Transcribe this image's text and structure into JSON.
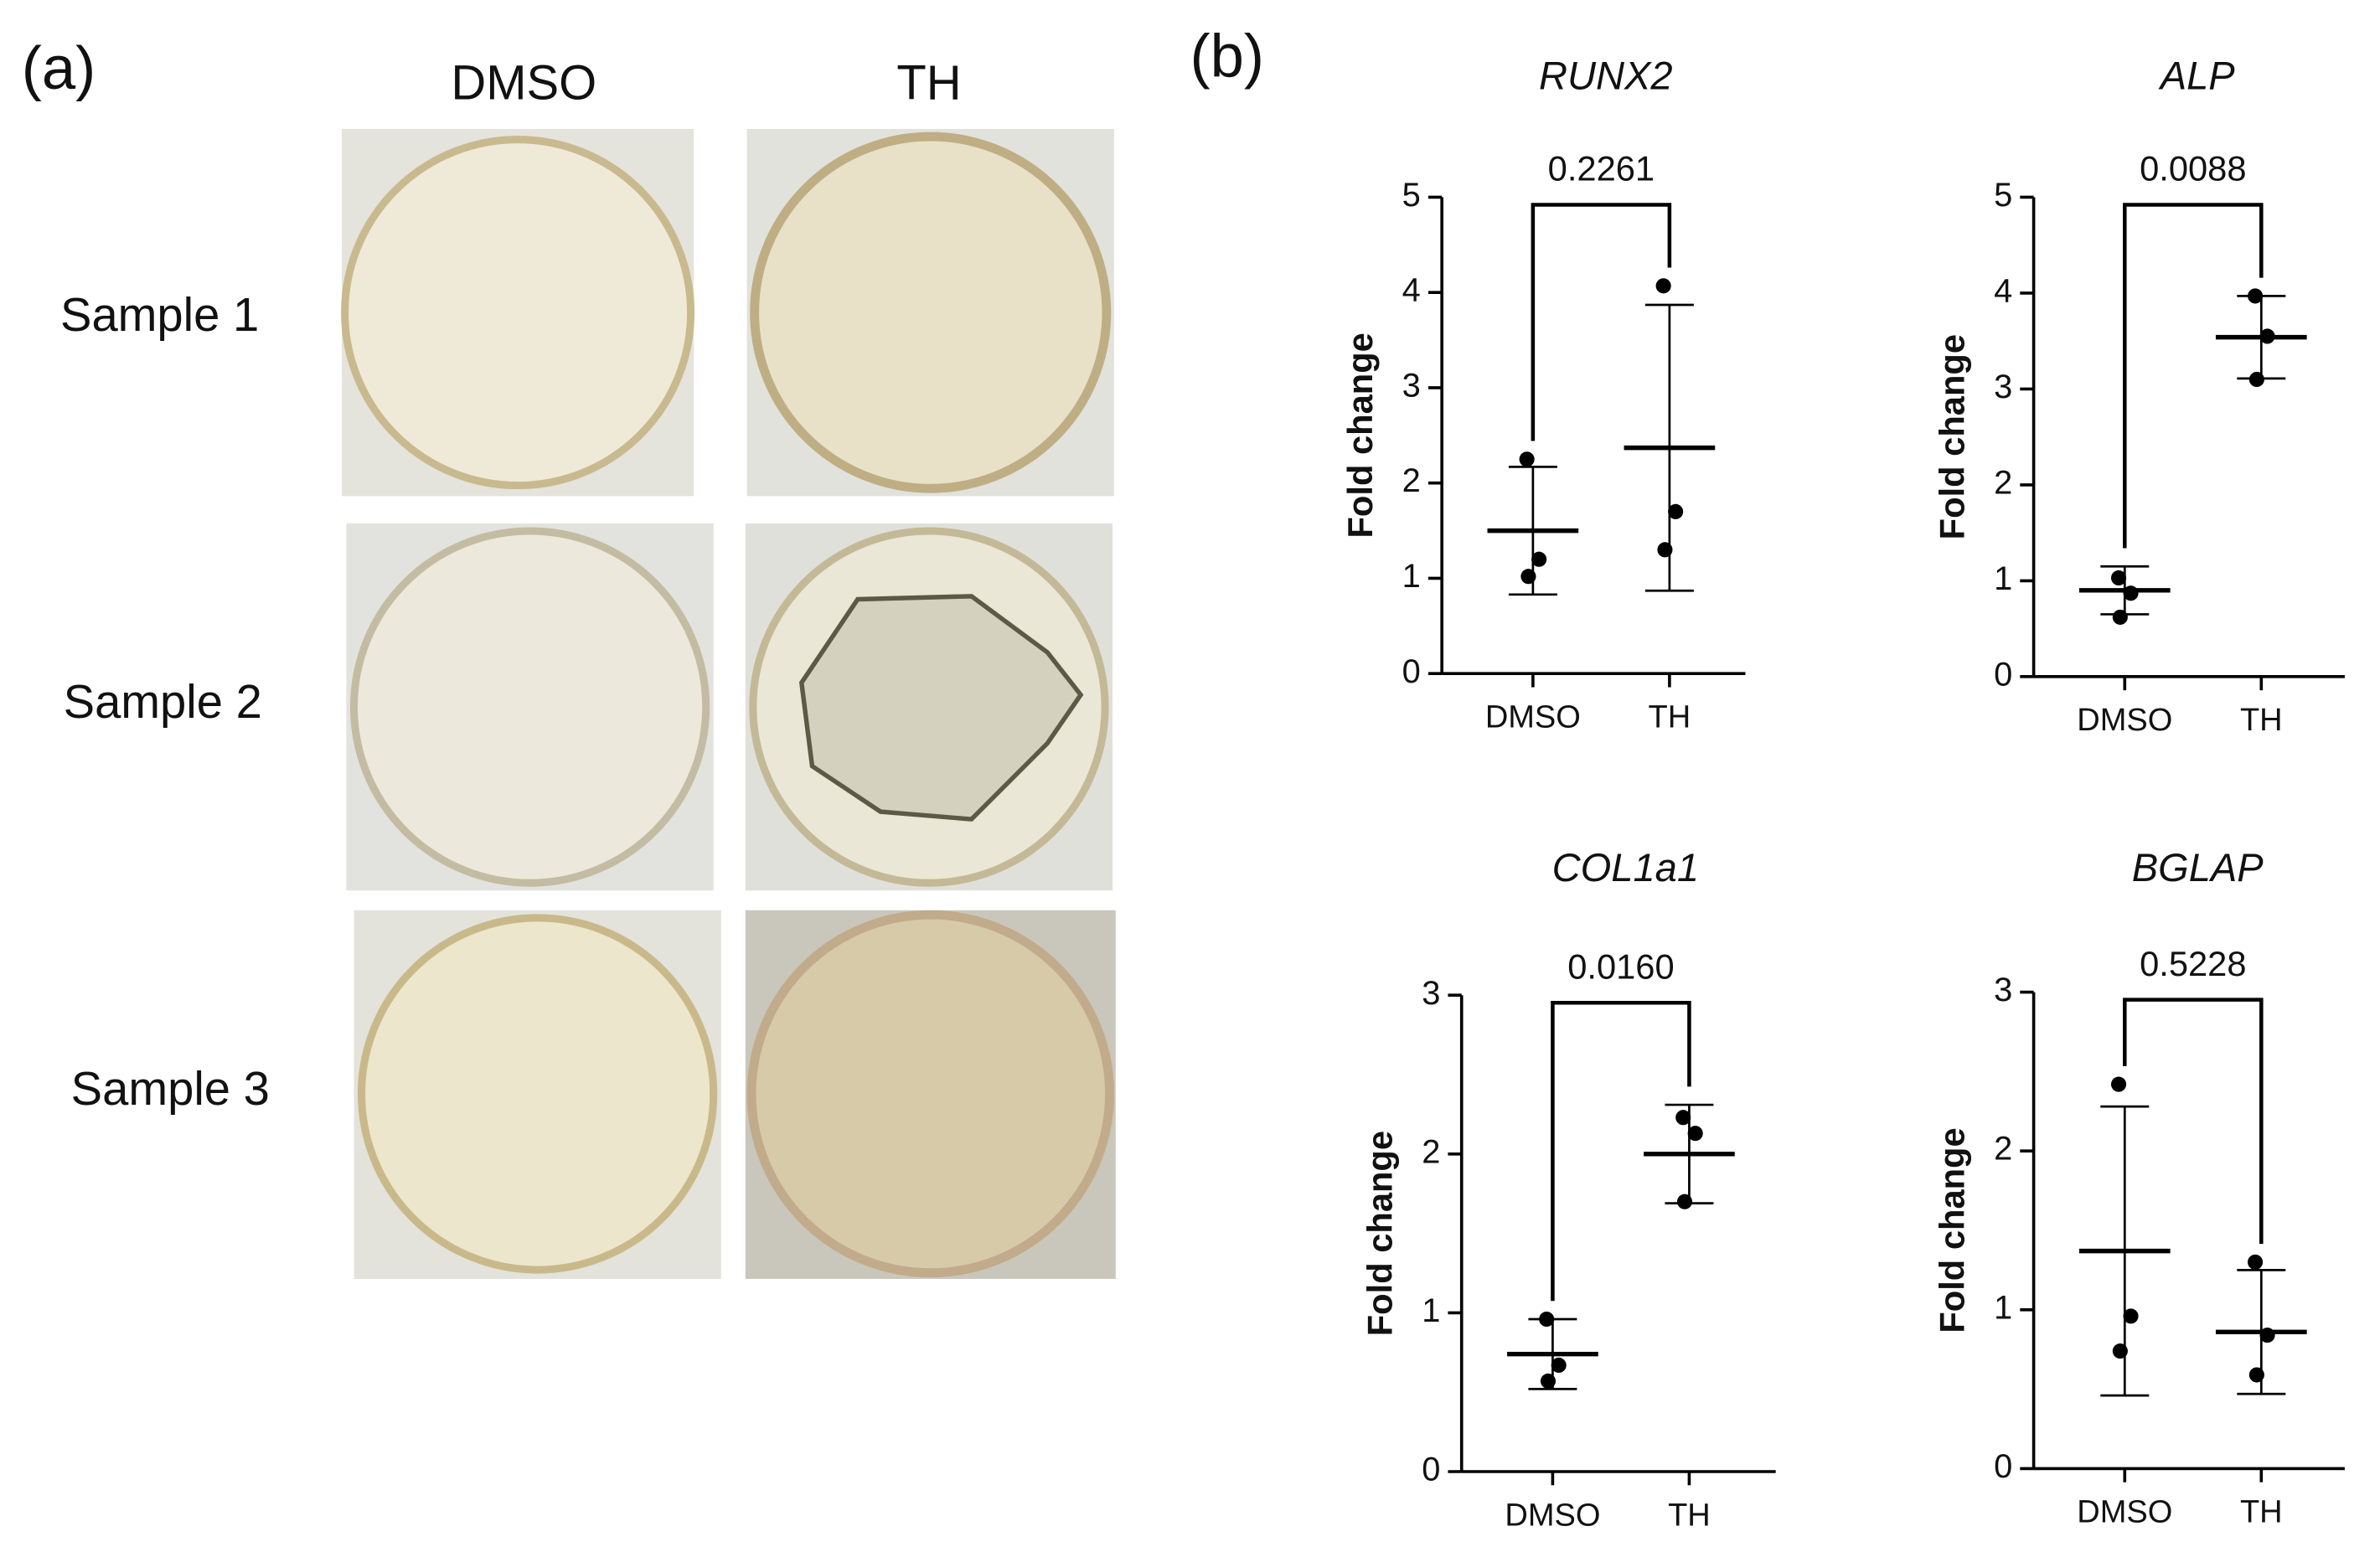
{
  "panel_labels": [
    "(a)",
    "(b)"
  ],
  "panel_a": {
    "columns": [
      "DMSO",
      "TH"
    ],
    "rows": [
      "Sample 1",
      "Sample 2",
      "Sample 3"
    ]
  },
  "chart_data": [
    {
      "type": "scatter",
      "title": "RUNX2",
      "ylabel": "Fold change",
      "annotation": "0.2261",
      "categories": [
        "DMSO",
        "TH"
      ],
      "points": [
        [
          2.25,
          1.2,
          1.02
        ],
        [
          4.07,
          1.7,
          1.3
        ]
      ],
      "mean": [
        1.5,
        2.37
      ],
      "sd": [
        0.67,
        1.5
      ],
      "ylim": [
        0,
        5
      ],
      "yticks": [
        0,
        1,
        2,
        3,
        4,
        5
      ],
      "color": "#000000"
    },
    {
      "type": "scatter",
      "title": "ALP",
      "ylabel": "Fold change",
      "annotation": "0.0088",
      "categories": [
        "DMSO",
        "TH"
      ],
      "points": [
        [
          1.03,
          0.87,
          0.62
        ],
        [
          3.97,
          3.55,
          3.1
        ]
      ],
      "mean": [
        0.9,
        3.54
      ],
      "sd": [
        0.25,
        0.43
      ],
      "ylim": [
        0,
        5
      ],
      "yticks": [
        0,
        1,
        2,
        3,
        4,
        5
      ],
      "color": "#000000"
    },
    {
      "type": "scatter",
      "title": "COL1a1",
      "ylabel": "Fold change",
      "annotation": "0.0160",
      "categories": [
        "DMSO",
        "TH"
      ],
      "points": [
        [
          0.96,
          0.67,
          0.57
        ],
        [
          2.23,
          2.13,
          1.7
        ]
      ],
      "mean": [
        0.74,
        2.0
      ],
      "sd": [
        0.22,
        0.31
      ],
      "ylim": [
        0,
        3
      ],
      "yticks": [
        0,
        1,
        2,
        3
      ],
      "color": "#000000"
    },
    {
      "type": "scatter",
      "title": "BGLAP",
      "ylabel": "Fold change",
      "annotation": "0.5228",
      "categories": [
        "DMSO",
        "TH"
      ],
      "points": [
        [
          2.42,
          0.96,
          0.74
        ],
        [
          1.3,
          0.84,
          0.59
        ]
      ],
      "mean": [
        1.37,
        0.86
      ],
      "sd": [
        0.91,
        0.39
      ],
      "ylim": [
        0,
        3
      ],
      "yticks": [
        0,
        1,
        2,
        3
      ],
      "color": "#000000"
    }
  ]
}
